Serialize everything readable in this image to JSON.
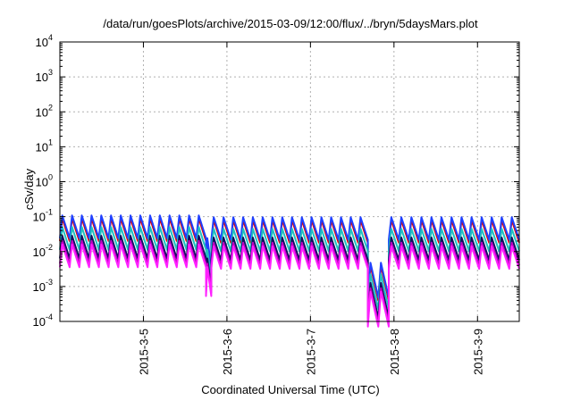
{
  "chart_data": {
    "type": "line",
    "title": "/data/run/goesPlots/archive/2015-03-09/12:00/flux/../bryn/5daysMars.plot",
    "xlabel": "Coordinated Universal Time (UTC)",
    "ylabel": "cSv/day",
    "yscale": "log",
    "ylim": [
      0.0001,
      10000
    ],
    "xlim": [
      "2015-03-04T00:00",
      "2015-03-09T12:00"
    ],
    "grid": true,
    "legend": "none",
    "yticks": [
      {
        "base": "10",
        "exp": "-4"
      },
      {
        "base": "10",
        "exp": "-3"
      },
      {
        "base": "10",
        "exp": "-2"
      },
      {
        "base": "10",
        "exp": "-1"
      },
      {
        "base": "10",
        "exp": "0"
      },
      {
        "base": "10",
        "exp": "1"
      },
      {
        "base": "10",
        "exp": "2"
      },
      {
        "base": "10",
        "exp": "3"
      },
      {
        "base": "10",
        "exp": "4"
      }
    ],
    "xticks": [
      "2015-3-5",
      "2015-3-6",
      "2015-3-7",
      "2015-3-8",
      "2015-3-9"
    ],
    "series_colors": [
      "#e00000",
      "#2040ff",
      "#20c0c0",
      "#101060",
      "#c000c0",
      "#ff20ff"
    ],
    "series_offsets_decades": [
      0.0,
      0.08,
      -0.25,
      -0.5,
      -0.65,
      -0.75
    ],
    "pattern": {
      "segments": [
        {
          "from": "2015-03-04T00:00",
          "to": "2015-03-05T18:00",
          "peak": 0.09,
          "trough": 0.02
        },
        {
          "from": "2015-03-05T18:00",
          "to": "2015-03-05T19:30",
          "peak": 0.02,
          "trough": 0.003
        },
        {
          "from": "2015-03-05T19:30",
          "to": "2015-03-07T16:30",
          "peak": 0.08,
          "trough": 0.018
        },
        {
          "from": "2015-03-07T16:30",
          "to": "2015-03-07T22:30",
          "peak": 0.004,
          "trough": 0.0004
        },
        {
          "from": "2015-03-07T22:30",
          "to": "2015-03-09T12:00",
          "peak": 0.08,
          "trough": 0.018
        }
      ],
      "pulse_period_hours": 2.8
    }
  }
}
